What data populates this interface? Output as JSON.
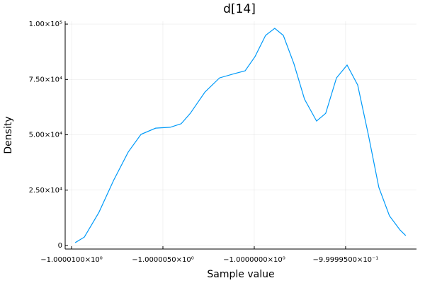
{
  "chart_data": {
    "type": "line",
    "title": "d[14]",
    "x_label": "Sample value",
    "y_label": "Density",
    "x": [
      -1.0000098,
      -1.0000093,
      -1.0000085,
      -1.0000077,
      -1.0000069,
      -1.0000062,
      -1.0000054,
      -1.0000046,
      -1.000004,
      -1.0000035,
      -1.0000027,
      -1.0000019,
      -1.0000011,
      -1.0000005,
      -0.99999996,
      -0.99999938,
      -0.99999888,
      -0.99999841,
      -0.99999783,
      -0.99999725,
      -0.99999659,
      -0.99999609,
      -0.9999955,
      -0.99999492,
      -0.99999434,
      -0.99999376,
      -0.99999318,
      -0.9999926,
      -0.99999202,
      -0.99999171
    ],
    "series": [
      {
        "color": "#009af9",
        "values": [
          1300,
          3800,
          15000,
          29400,
          42200,
          50200,
          53000,
          53400,
          55000,
          59700,
          69300,
          75700,
          77600,
          78900,
          85300,
          94900,
          98100,
          94900,
          82100,
          66100,
          56200,
          59700,
          75700,
          81500,
          72500,
          50200,
          26200,
          13400,
          7000,
          4500
        ]
      }
    ],
    "xlim": [
      -1.00001035,
      -0.99999112
    ],
    "ylim": [
      -1600,
      101300
    ],
    "xticks": [
      {
        "value": -1.00001,
        "label": "−1.0000100×10⁰"
      },
      {
        "value": -1.000005,
        "label": "−1.0000050×10⁰"
      },
      {
        "value": -1.0,
        "label": "−1.0000000×10⁰"
      },
      {
        "value": -0.999995,
        "label": "−9.9999500×10⁻¹"
      }
    ],
    "yticks": [
      0,
      {
        "value": 25000,
        "label": "2.50×10⁴"
      },
      {
        "value": 50000,
        "label": "5.00×10⁴"
      },
      {
        "value": 75000,
        "label": "7.50×10⁴"
      },
      {
        "value": 100000,
        "label": "1.00×10⁵"
      }
    ],
    "grid": true
  }
}
